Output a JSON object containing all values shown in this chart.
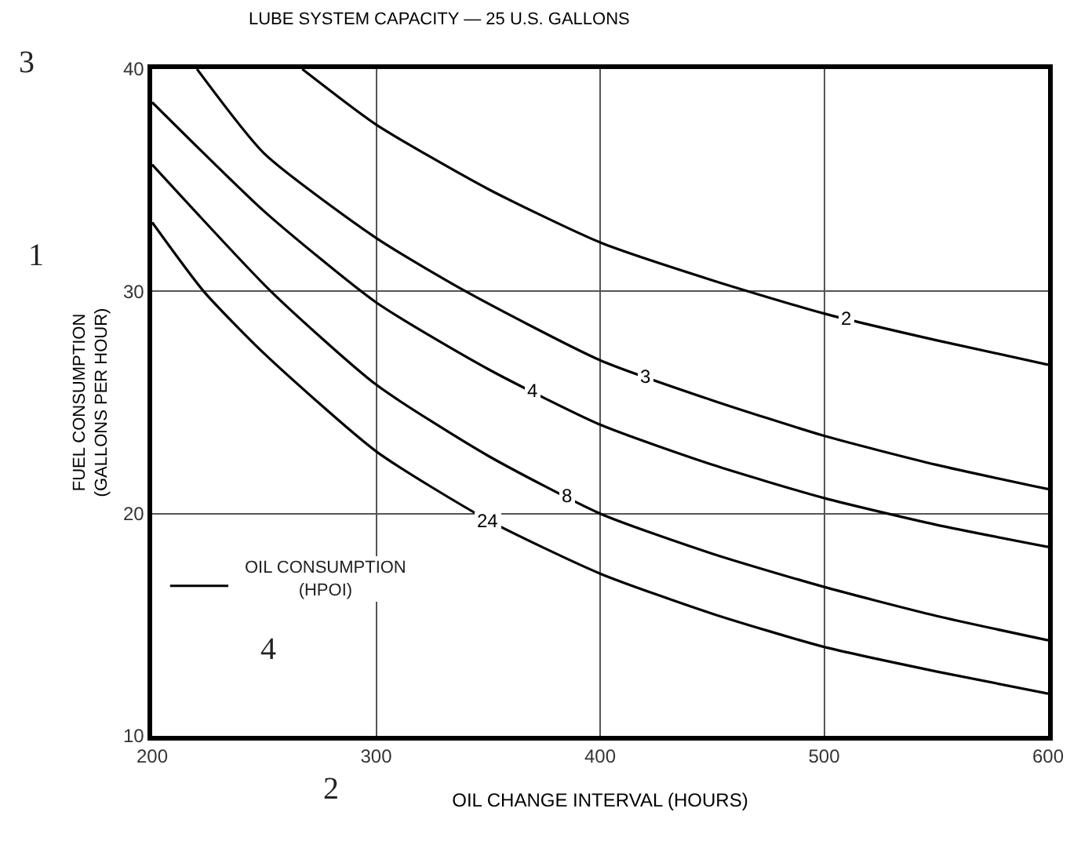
{
  "chart_data": {
    "type": "line",
    "title": "LUBE SYSTEM CAPACITY — 25 U.S. GALLONS",
    "xlabel": "OIL CHANGE INTERVAL (HOURS)",
    "ylabel": "FUEL CONSUMPTION\n(GALLONS PER HOUR)",
    "annotations": [
      "OIL CONSUMPTION\n(HPOI)",
      "1",
      "2",
      "3",
      "4"
    ],
    "xlim": [
      200,
      600
    ],
    "ylim": [
      10,
      40
    ],
    "xticks": [
      200,
      300,
      400,
      500,
      600
    ],
    "yticks": [
      10,
      20,
      30,
      40
    ],
    "grid": true,
    "marker": "none",
    "line_style": "solid",
    "series": [
      {
        "name": "2",
        "color": "#000000",
        "x": [
          267,
          300,
          350,
          400,
          450,
          500,
          550,
          600
        ],
        "values": [
          40,
          37.5,
          34.6,
          32.2,
          30.5,
          29.0,
          27.8,
          26.7
        ]
      },
      {
        "name": "3",
        "color": "#000000",
        "x": [
          220,
          250,
          300,
          340,
          400,
          450,
          500,
          550,
          600
        ],
        "values": [
          40,
          36.2,
          32.4,
          30,
          26.9,
          25.1,
          23.5,
          22.2,
          21.1
        ]
      },
      {
        "name": "4",
        "color": "#000000",
        "x": [
          200,
          250,
          300,
          350,
          400,
          450,
          500,
          550,
          600
        ],
        "values": [
          38.5,
          33.6,
          29.5,
          26.5,
          24.0,
          22.2,
          20.7,
          19.5,
          18.5
        ]
      },
      {
        "name": "8",
        "color": "#000000",
        "x": [
          200,
          253,
          300,
          350,
          400,
          450,
          500,
          550,
          600
        ],
        "values": [
          35.7,
          30,
          25.8,
          22.6,
          20.0,
          18.2,
          16.7,
          15.4,
          14.3
        ]
      },
      {
        "name": "24",
        "color": "#000000",
        "x": [
          200,
          223,
          250,
          300,
          350,
          400,
          450,
          500,
          550,
          600
        ],
        "values": [
          33.1,
          30,
          27.2,
          22.8,
          19.7,
          17.3,
          15.5,
          14.0,
          12.9,
          11.9
        ]
      }
    ]
  }
}
